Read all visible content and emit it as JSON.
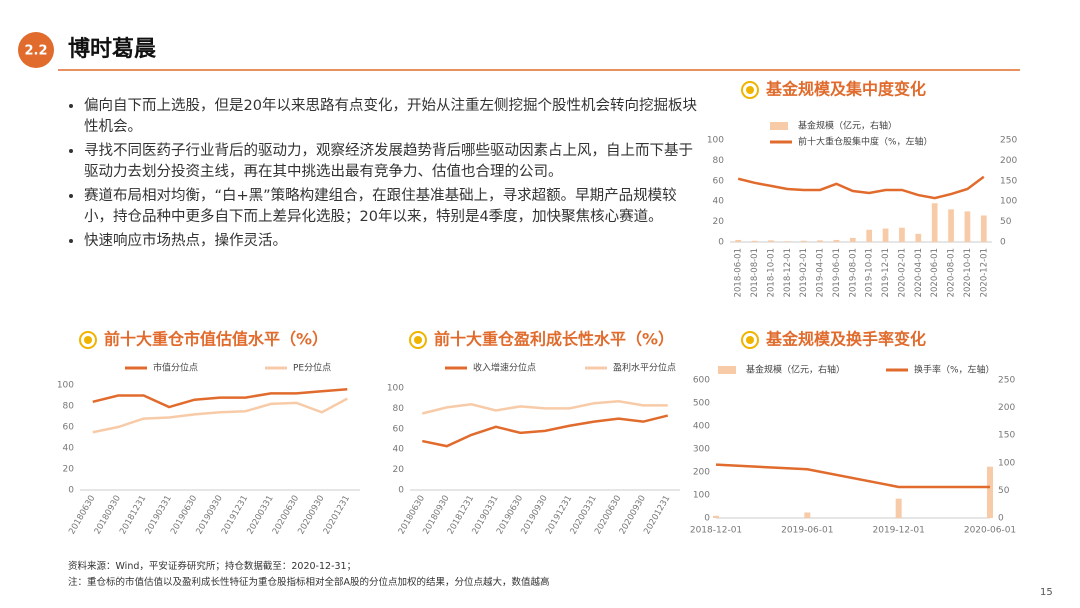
{
  "header": {
    "number": "2.2",
    "title": "博时葛晨"
  },
  "bullets": [
    "偏向自下而上选股，但是20年以来思路有点变化，开始从注重左侧挖掘个股性机会转向挖掘板块性机会。",
    "寻找不同医药子行业背后的驱动力，观察经济发展趋势背后哪些驱动因素占上风，自上而下基于驱动力去划分投资主线，再在其中挑选出最有竞争力、估值也合理的公司。",
    "赛道布局相对均衡，“白+黑”策略构建组合，在跟住基准基础上，寻求超额。早期产品规模较小，持仓品种中更多自下而上差异化选股；20年以来，特别是4季度，加快聚焦核心赛道。",
    "快速响应市场热点，操作灵活。"
  ],
  "chart_data": [
    {
      "type": "combo",
      "title": "基金规模及集中度变化",
      "categories": [
        "2018-06-01",
        "2018-08-01",
        "2018-10-01",
        "2018-12-01",
        "2019-02-01",
        "2019-04-01",
        "2019-06-01",
        "2019-08-01",
        "2019-10-01",
        "2019-12-01",
        "2020-02-01",
        "2020-04-01",
        "2020-06-01",
        "2020-08-01",
        "2020-10-01",
        "2020-12-01"
      ],
      "series": [
        {
          "name": "基金规模（亿元，右轴）",
          "kind": "bar",
          "axis": "y2",
          "color": "#f8cba8",
          "values": [
            5,
            3,
            4,
            2,
            3,
            4,
            5,
            10,
            30,
            33,
            35,
            20,
            95,
            80,
            75,
            65
          ]
        },
        {
          "name": "前十大重仓股集中度（%，左轴）",
          "kind": "line",
          "color": "#e06b2c",
          "values": [
            62,
            58,
            55,
            52,
            51,
            51,
            57,
            50,
            48,
            51,
            51,
            46,
            43,
            47,
            52,
            64
          ]
        }
      ],
      "ylim": [
        0,
        100
      ],
      "yticks": [
        0,
        20,
        40,
        60,
        80,
        100
      ],
      "y2lim": [
        0,
        250
      ],
      "y2ticks": [
        0,
        50,
        100,
        150,
        200,
        250
      ]
    },
    {
      "type": "line",
      "title": "前十大重仓市值估值水平（%）",
      "categories": [
        "20180630",
        "20180930",
        "20181231",
        "20190331",
        "20190630",
        "20190930",
        "20191231",
        "20200331",
        "20200630",
        "20200930",
        "20201231"
      ],
      "series": [
        {
          "name": "市值分位点",
          "color": "#e06b2c",
          "values": [
            84,
            90,
            90,
            79,
            86,
            88,
            88,
            92,
            92,
            94,
            96
          ]
        },
        {
          "name": "PE分位点",
          "color": "#f8cba8",
          "values": [
            55,
            60,
            68,
            69,
            72,
            74,
            75,
            82,
            83,
            74,
            87
          ]
        }
      ],
      "ylim": [
        0,
        100
      ],
      "yticks": [
        0,
        20,
        40,
        60,
        80,
        100
      ]
    },
    {
      "type": "line",
      "title": "前十大重仓盈利成长性水平（%）",
      "categories": [
        "20180630",
        "20180930",
        "20181231",
        "20190331",
        "20190630",
        "20190930",
        "20191231",
        "20200331",
        "20200630",
        "20200930",
        "20201231"
      ],
      "series": [
        {
          "name": "收入增速分位点",
          "color": "#e06b2c",
          "values": [
            48,
            43,
            54,
            62,
            56,
            58,
            63,
            67,
            70,
            67,
            73
          ]
        },
        {
          "name": "盈利水平分位点",
          "color": "#f8cba8",
          "values": [
            75,
            81,
            84,
            78,
            82,
            80,
            80,
            85,
            87,
            83,
            83
          ]
        }
      ],
      "ylim": [
        0,
        100
      ],
      "yticks": [
        0,
        20,
        40,
        60,
        80,
        100
      ]
    },
    {
      "type": "combo",
      "title": "基金规模及换手率变化",
      "categories": [
        "2018-12-01",
        "2019-06-01",
        "2019-12-01",
        "2020-06-01"
      ],
      "series": [
        {
          "name": "基金规模（亿元，右轴）",
          "kind": "bar",
          "axis": "y2",
          "color": "#f8cba8",
          "values": [
            4,
            10,
            35,
            93
          ]
        },
        {
          "name": "换手率（%，左轴）",
          "kind": "line",
          "color": "#e06b2c",
          "values": [
            232,
            212,
            135,
            135
          ]
        }
      ],
      "ylim": [
        0,
        600
      ],
      "yticks": [
        0,
        100,
        200,
        300,
        400,
        500,
        600
      ],
      "y2lim": [
        0,
        250
      ],
      "y2ticks": [
        0,
        50,
        100,
        150,
        200,
        250
      ]
    }
  ],
  "footnotes": [
    "资料来源：Wind，平安证券研究所；持仓数据截至：2020-12-31；",
    "注：重仓标的市值估值以及盈利成长性特征为重仓股指标相对全部A股的分位点加权的结果，分位点越大，数值越高"
  ],
  "page_number": "15"
}
